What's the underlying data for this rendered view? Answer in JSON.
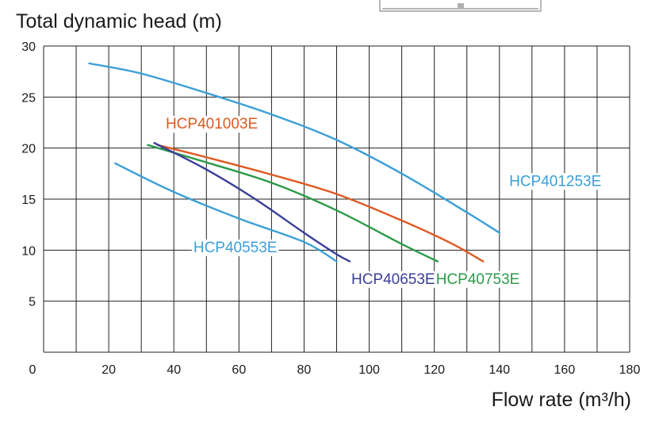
{
  "chart_data": {
    "type": "line",
    "ylabel": "Total dynamic head (m)",
    "xlabel": "Flow rate (m³/h)",
    "xlim": [
      0,
      180
    ],
    "ylim": [
      0,
      30
    ],
    "xticks": [
      0,
      20,
      40,
      60,
      80,
      100,
      120,
      140,
      160,
      180
    ],
    "yticks": [
      5,
      10,
      15,
      20,
      25,
      30
    ],
    "grid_x_step": 10,
    "grid_y_step": 5,
    "grid": true,
    "series": [
      {
        "name": "HCP401253E",
        "color": "#3a9fd8",
        "x": [
          14,
          30,
          50,
          70,
          90,
          110,
          130,
          140
        ],
        "y": [
          28.3,
          27.3,
          25.4,
          23.3,
          20.8,
          17.5,
          13.7,
          11.7
        ]
      },
      {
        "name": "HCP401003E",
        "color": "#de5a22",
        "x": [
          35,
          50,
          70,
          90,
          110,
          125,
          135
        ],
        "y": [
          20.3,
          19.1,
          17.4,
          15.5,
          12.9,
          10.7,
          8.9
        ]
      },
      {
        "name": "HCP40753E",
        "color": "#2c9a49",
        "x": [
          32,
          50,
          70,
          90,
          110,
          121
        ],
        "y": [
          20.3,
          18.6,
          16.6,
          13.9,
          10.6,
          8.9
        ]
      },
      {
        "name": "HCP40653E",
        "color": "#3b3e98",
        "x": [
          34,
          50,
          65,
          80,
          90,
          94
        ],
        "y": [
          20.5,
          17.9,
          15.0,
          11.7,
          9.6,
          8.9
        ]
      },
      {
        "name": "HCP40553E",
        "color": "#3a9fd8",
        "x": [
          22,
          40,
          60,
          80,
          90
        ],
        "y": [
          18.5,
          15.7,
          13.1,
          10.8,
          8.9
        ]
      }
    ],
    "labels": [
      {
        "series": 0,
        "text": "HCP401253E",
        "x": 143,
        "y": 16.3
      },
      {
        "series": 1,
        "text": "HCP401003E",
        "x": 37.5,
        "y": 21.9
      },
      {
        "series": 2,
        "text": "HCP40753E",
        "x": 120.5,
        "y": 6.7
      },
      {
        "series": 3,
        "text": "HCP40653E",
        "x": 94.5,
        "y": 6.7
      },
      {
        "series": 4,
        "text": "HCP40553E",
        "x": 46,
        "y": 9.8
      }
    ]
  }
}
